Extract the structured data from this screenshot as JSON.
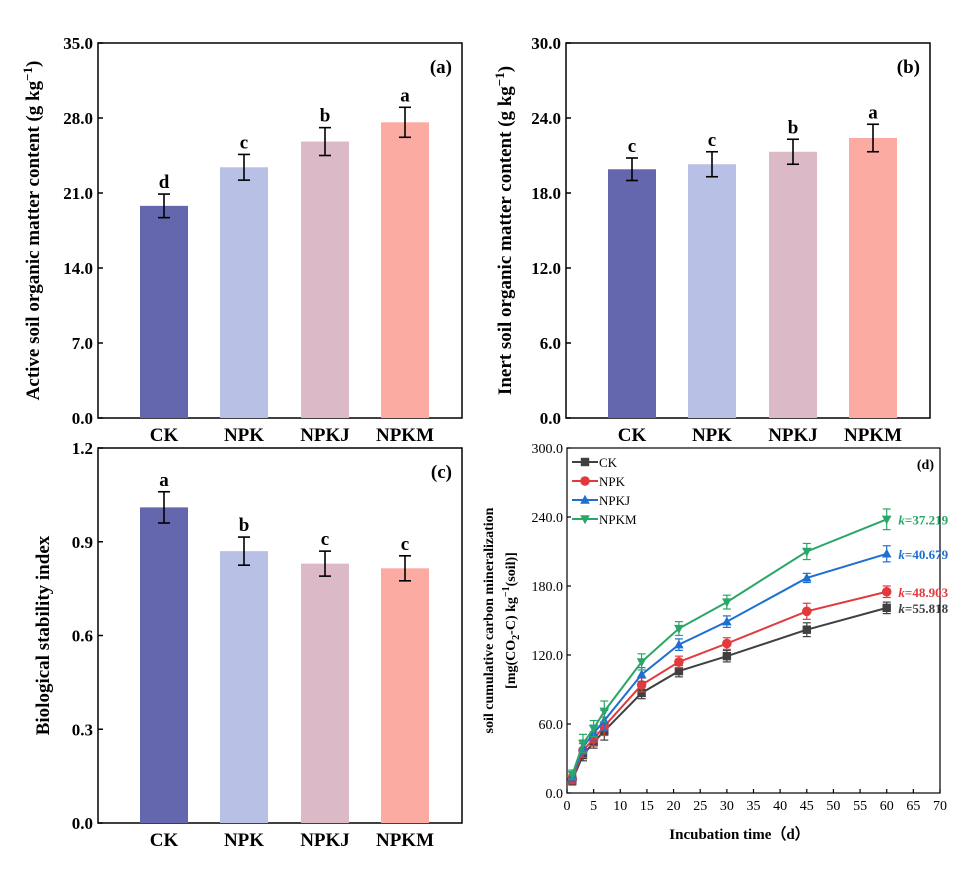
{
  "chart_data": [
    {
      "type": "bar",
      "panel_label": "(a)",
      "ylabel": "Active soil organic matter content (g kg",
      "ylabel_sup": "−1",
      "ylabel_close": ")",
      "ylim": [
        0,
        35
      ],
      "yticks": [
        "0.0",
        "7.0",
        "14.0",
        "21.0",
        "28.0",
        "35.0"
      ],
      "categories": [
        "CK",
        "NPK",
        "NPKJ",
        "NPKM"
      ],
      "values": [
        19.8,
        23.4,
        25.8,
        27.6
      ],
      "errors": [
        1.1,
        1.2,
        1.3,
        1.4
      ],
      "letters": [
        "d",
        "c",
        "b",
        "a"
      ],
      "colors": [
        "#6467ad",
        "#b9c0e6",
        "#dbb9c6",
        "#fcaba2"
      ]
    },
    {
      "type": "bar",
      "panel_label": "(b)",
      "ylabel": "Inert soil organic matter content (g kg",
      "ylabel_sup": "−1",
      "ylabel_close": ")",
      "ylim": [
        0,
        30
      ],
      "yticks": [
        "0.0",
        "6.0",
        "12.0",
        "18.0",
        "24.0",
        "30.0"
      ],
      "categories": [
        "CK",
        "NPK",
        "NPKJ",
        "NPKM"
      ],
      "values": [
        19.9,
        20.3,
        21.3,
        22.4
      ],
      "errors": [
        0.9,
        1.0,
        1.0,
        1.1
      ],
      "letters": [
        "c",
        "c",
        "b",
        "a"
      ],
      "colors": [
        "#6467ad",
        "#b9c0e6",
        "#dbb9c6",
        "#fcaba2"
      ]
    },
    {
      "type": "bar",
      "panel_label": "(c)",
      "ylabel": "Biological stability index",
      "ylabel_sup": "",
      "ylabel_close": "",
      "ylim": [
        0,
        1.2
      ],
      "yticks": [
        "0.0",
        "0.3",
        "0.6",
        "0.9",
        "1.2"
      ],
      "categories": [
        "CK",
        "NPK",
        "NPKJ",
        "NPKM"
      ],
      "values": [
        1.01,
        0.87,
        0.83,
        0.815
      ],
      "errors": [
        0.05,
        0.045,
        0.04,
        0.04
      ],
      "letters": [
        "a",
        "b",
        "c",
        "c"
      ],
      "colors": [
        "#6467ad",
        "#b9c0e6",
        "#dbb9c6",
        "#fcaba2"
      ]
    },
    {
      "type": "line",
      "panel_label": "(d)",
      "ylabel_line1": "soil cumulative carbon mineralization",
      "ylabel_line2_a": "[mg(CO",
      "ylabel_line2_sub": "2",
      "ylabel_line2_b": "-C) kg",
      "ylabel_line2_sup": "−1",
      "ylabel_line2_c": "(soil)]",
      "xlabel": "Incubation time（d）",
      "xlim": [
        0,
        70
      ],
      "ylim": [
        0,
        300
      ],
      "xticks": [
        "0",
        "5",
        "10",
        "15",
        "20",
        "25",
        "30",
        "35",
        "40",
        "45",
        "50",
        "55",
        "60",
        "65",
        "70"
      ],
      "yticks": [
        "0.0",
        "60.0",
        "120.0",
        "180.0",
        "240.0",
        "300.0"
      ],
      "x": [
        1,
        3,
        5,
        7,
        14,
        21,
        30,
        45,
        60
      ],
      "series": [
        {
          "name": "CK",
          "color": "#404040",
          "marker": "square",
          "values": [
            11,
            33,
            44,
            54,
            87,
            106,
            119,
            142,
            161
          ],
          "err": [
            4,
            5,
            5,
            8,
            5,
            5,
            5,
            6,
            5
          ],
          "k_prefix": "k",
          "k_value": "=55.818"
        },
        {
          "name": "NPK",
          "color": "#e23a3c",
          "marker": "circle",
          "values": [
            12,
            37,
            47,
            58,
            94,
            114,
            130,
            158,
            175
          ],
          "err": [
            4,
            6,
            6,
            8,
            6,
            5,
            5,
            7,
            5
          ],
          "k_prefix": "k",
          "k_value": "=48.903"
        },
        {
          "name": "NPKJ",
          "color": "#1f6fd0",
          "marker": "triangle-up",
          "values": [
            14,
            40,
            52,
            63,
            103,
            129,
            149,
            187,
            208
          ],
          "err": [
            4,
            6,
            7,
            9,
            6,
            5,
            5,
            4,
            7
          ],
          "k_prefix": "k",
          "k_value": "=40.679"
        },
        {
          "name": "NPKM",
          "color": "#2aa666",
          "marker": "triangle-down",
          "values": [
            16,
            43,
            56,
            71,
            114,
            143,
            166,
            210,
            238
          ],
          "err": [
            4,
            8,
            7,
            9,
            7,
            6,
            6,
            7,
            9
          ],
          "k_prefix": "k",
          "k_value": "=37.219"
        }
      ]
    }
  ]
}
